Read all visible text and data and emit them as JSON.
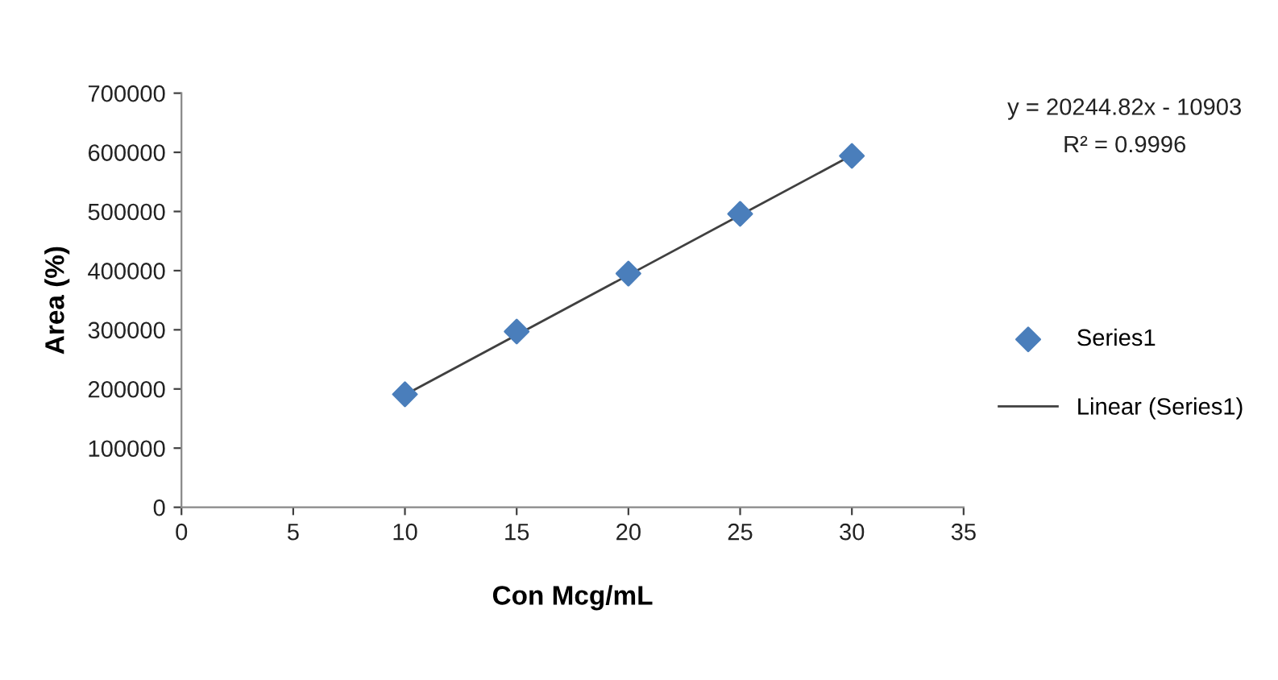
{
  "chart_data": {
    "type": "scatter",
    "xlabel": "Con Mcg/mL",
    "ylabel": "Area (%)",
    "series": [
      {
        "name": "Series1",
        "color": "#4a7ebb",
        "marker": "diamond",
        "x": [
          10,
          15,
          20,
          25,
          30
        ],
        "values": [
          191000,
          297000,
          395000,
          496000,
          594000
        ]
      },
      {
        "name": "Linear (Series1)",
        "type": "line",
        "color": "#404040",
        "marker": "none",
        "line_style": "solid",
        "x": [
          10,
          30
        ],
        "values": [
          190000,
          595000
        ]
      }
    ],
    "annotations": [
      "y = 20244.82x - 10903",
      "R² = 0.9996"
    ],
    "xlim": [
      0,
      35
    ],
    "xticks": [
      0,
      5,
      10,
      15,
      20,
      25,
      30,
      35
    ],
    "ylim": [
      0,
      700000
    ],
    "yticks": [
      0,
      100000,
      200000,
      300000,
      400000,
      500000,
      600000,
      700000
    ],
    "grid": false,
    "legend": "right"
  }
}
